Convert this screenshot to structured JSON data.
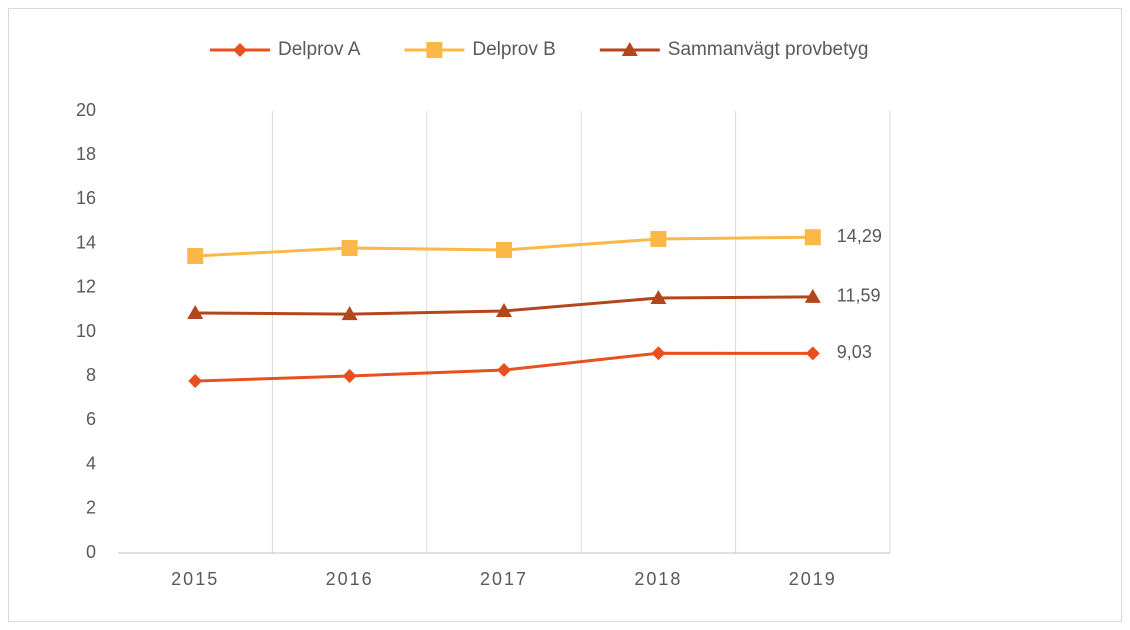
{
  "chart_data": {
    "type": "line",
    "categories": [
      "2015",
      "2016",
      "2017",
      "2018",
      "2019"
    ],
    "series": [
      {
        "name": "Delprov A",
        "color": "#e8501f",
        "marker": "diamond",
        "values": [
          7.78,
          8.01,
          8.28,
          9.04,
          9.03
        ],
        "value_labels": [
          null,
          null,
          null,
          null,
          "9,03"
        ]
      },
      {
        "name": "Delprov B",
        "color": "#fbb848",
        "marker": "square",
        "values": [
          13.44,
          13.8,
          13.71,
          14.21,
          14.29
        ],
        "value_labels": [
          null,
          null,
          null,
          null,
          "14,29"
        ]
      },
      {
        "name": "Sammanvägt provbetyg",
        "color": "#b4461d",
        "marker": "triangle",
        "values": [
          10.86,
          10.81,
          10.95,
          11.54,
          11.59
        ],
        "value_labels": [
          null,
          null,
          null,
          null,
          "11,59"
        ]
      }
    ],
    "ylim": [
      0,
      20
    ],
    "yticks": [
      0,
      2,
      4,
      6,
      8,
      10,
      12,
      14,
      16,
      18,
      20
    ],
    "grid": "vertical",
    "legend": "top"
  }
}
